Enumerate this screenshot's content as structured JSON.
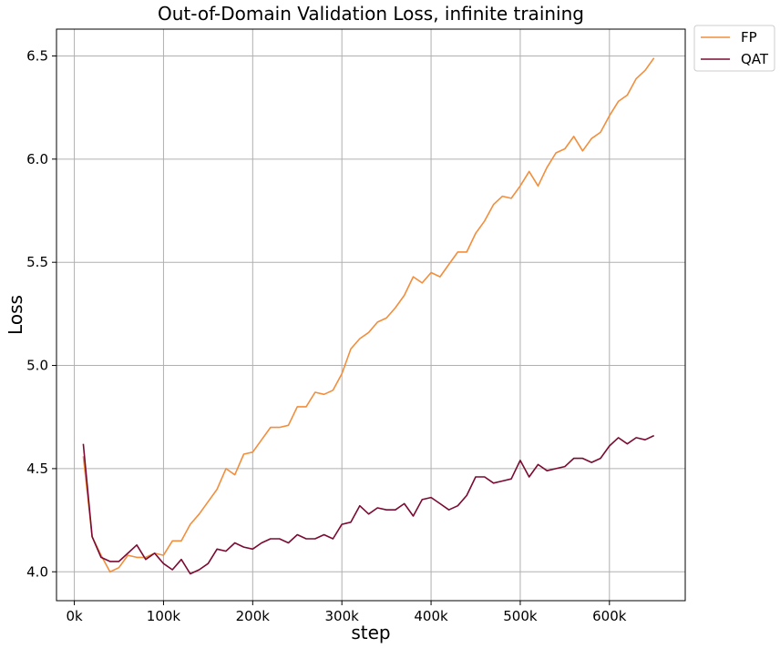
{
  "chart_data": {
    "type": "line",
    "title": "Out-of-Domain Validation Loss, infinite training",
    "xlabel": "step",
    "ylabel": "Loss",
    "xlim": [
      -20000,
      685000
    ],
    "ylim": [
      3.86,
      6.63
    ],
    "xticks": [
      0,
      100000,
      200000,
      300000,
      400000,
      500000,
      600000
    ],
    "xtick_labels": [
      "0k",
      "100k",
      "200k",
      "300k",
      "400k",
      "500k",
      "600k"
    ],
    "yticks": [
      4.0,
      4.5,
      5.0,
      5.5,
      6.0,
      6.5
    ],
    "ytick_labels": [
      "4.0",
      "4.5",
      "5.0",
      "5.5",
      "6.0",
      "6.5"
    ],
    "grid": true,
    "legend": "outside-top-right",
    "x": [
      10000,
      20000,
      30000,
      40000,
      50000,
      60000,
      70000,
      80000,
      90000,
      100000,
      110000,
      120000,
      130000,
      140000,
      150000,
      160000,
      170000,
      180000,
      190000,
      200000,
      210000,
      220000,
      230000,
      240000,
      250000,
      260000,
      270000,
      280000,
      290000,
      300000,
      310000,
      320000,
      330000,
      340000,
      350000,
      360000,
      370000,
      380000,
      390000,
      400000,
      410000,
      420000,
      430000,
      440000,
      450000,
      460000,
      470000,
      480000,
      490000,
      500000,
      510000,
      520000,
      530000,
      540000,
      550000,
      560000,
      570000,
      580000,
      590000,
      600000,
      610000,
      620000,
      630000,
      640000,
      650000
    ],
    "series": [
      {
        "name": "FP",
        "color": "#f28e3c",
        "values": [
          4.56,
          4.17,
          4.08,
          4.0,
          4.02,
          4.08,
          4.07,
          4.07,
          4.09,
          4.08,
          4.15,
          4.15,
          4.23,
          4.28,
          4.34,
          4.4,
          4.5,
          4.47,
          4.57,
          4.58,
          4.64,
          4.7,
          4.7,
          4.71,
          4.8,
          4.8,
          4.87,
          4.86,
          4.88,
          4.96,
          5.08,
          5.13,
          5.16,
          5.21,
          5.23,
          5.28,
          5.34,
          5.43,
          5.4,
          5.45,
          5.43,
          5.49,
          5.55,
          5.55,
          5.64,
          5.7,
          5.78,
          5.82,
          5.81,
          5.87,
          5.94,
          5.87,
          5.96,
          6.03,
          6.05,
          6.11,
          6.04,
          6.1,
          6.13,
          6.21,
          6.28,
          6.31,
          6.39,
          6.43,
          6.49
        ]
      },
      {
        "name": "QAT",
        "color": "#7a0a33",
        "values": [
          4.62,
          4.17,
          4.07,
          4.05,
          4.05,
          4.09,
          4.13,
          4.06,
          4.09,
          4.04,
          4.01,
          4.06,
          3.99,
          4.01,
          4.04,
          4.11,
          4.1,
          4.14,
          4.12,
          4.11,
          4.14,
          4.16,
          4.16,
          4.14,
          4.18,
          4.16,
          4.16,
          4.18,
          4.16,
          4.23,
          4.24,
          4.32,
          4.28,
          4.31,
          4.3,
          4.3,
          4.33,
          4.27,
          4.35,
          4.36,
          4.33,
          4.3,
          4.32,
          4.37,
          4.46,
          4.46,
          4.43,
          4.44,
          4.45,
          4.54,
          4.46,
          4.52,
          4.49,
          4.5,
          4.51,
          4.55,
          4.55,
          4.53,
          4.55,
          4.61,
          4.65,
          4.62,
          4.65,
          4.64,
          4.66
        ]
      }
    ]
  }
}
